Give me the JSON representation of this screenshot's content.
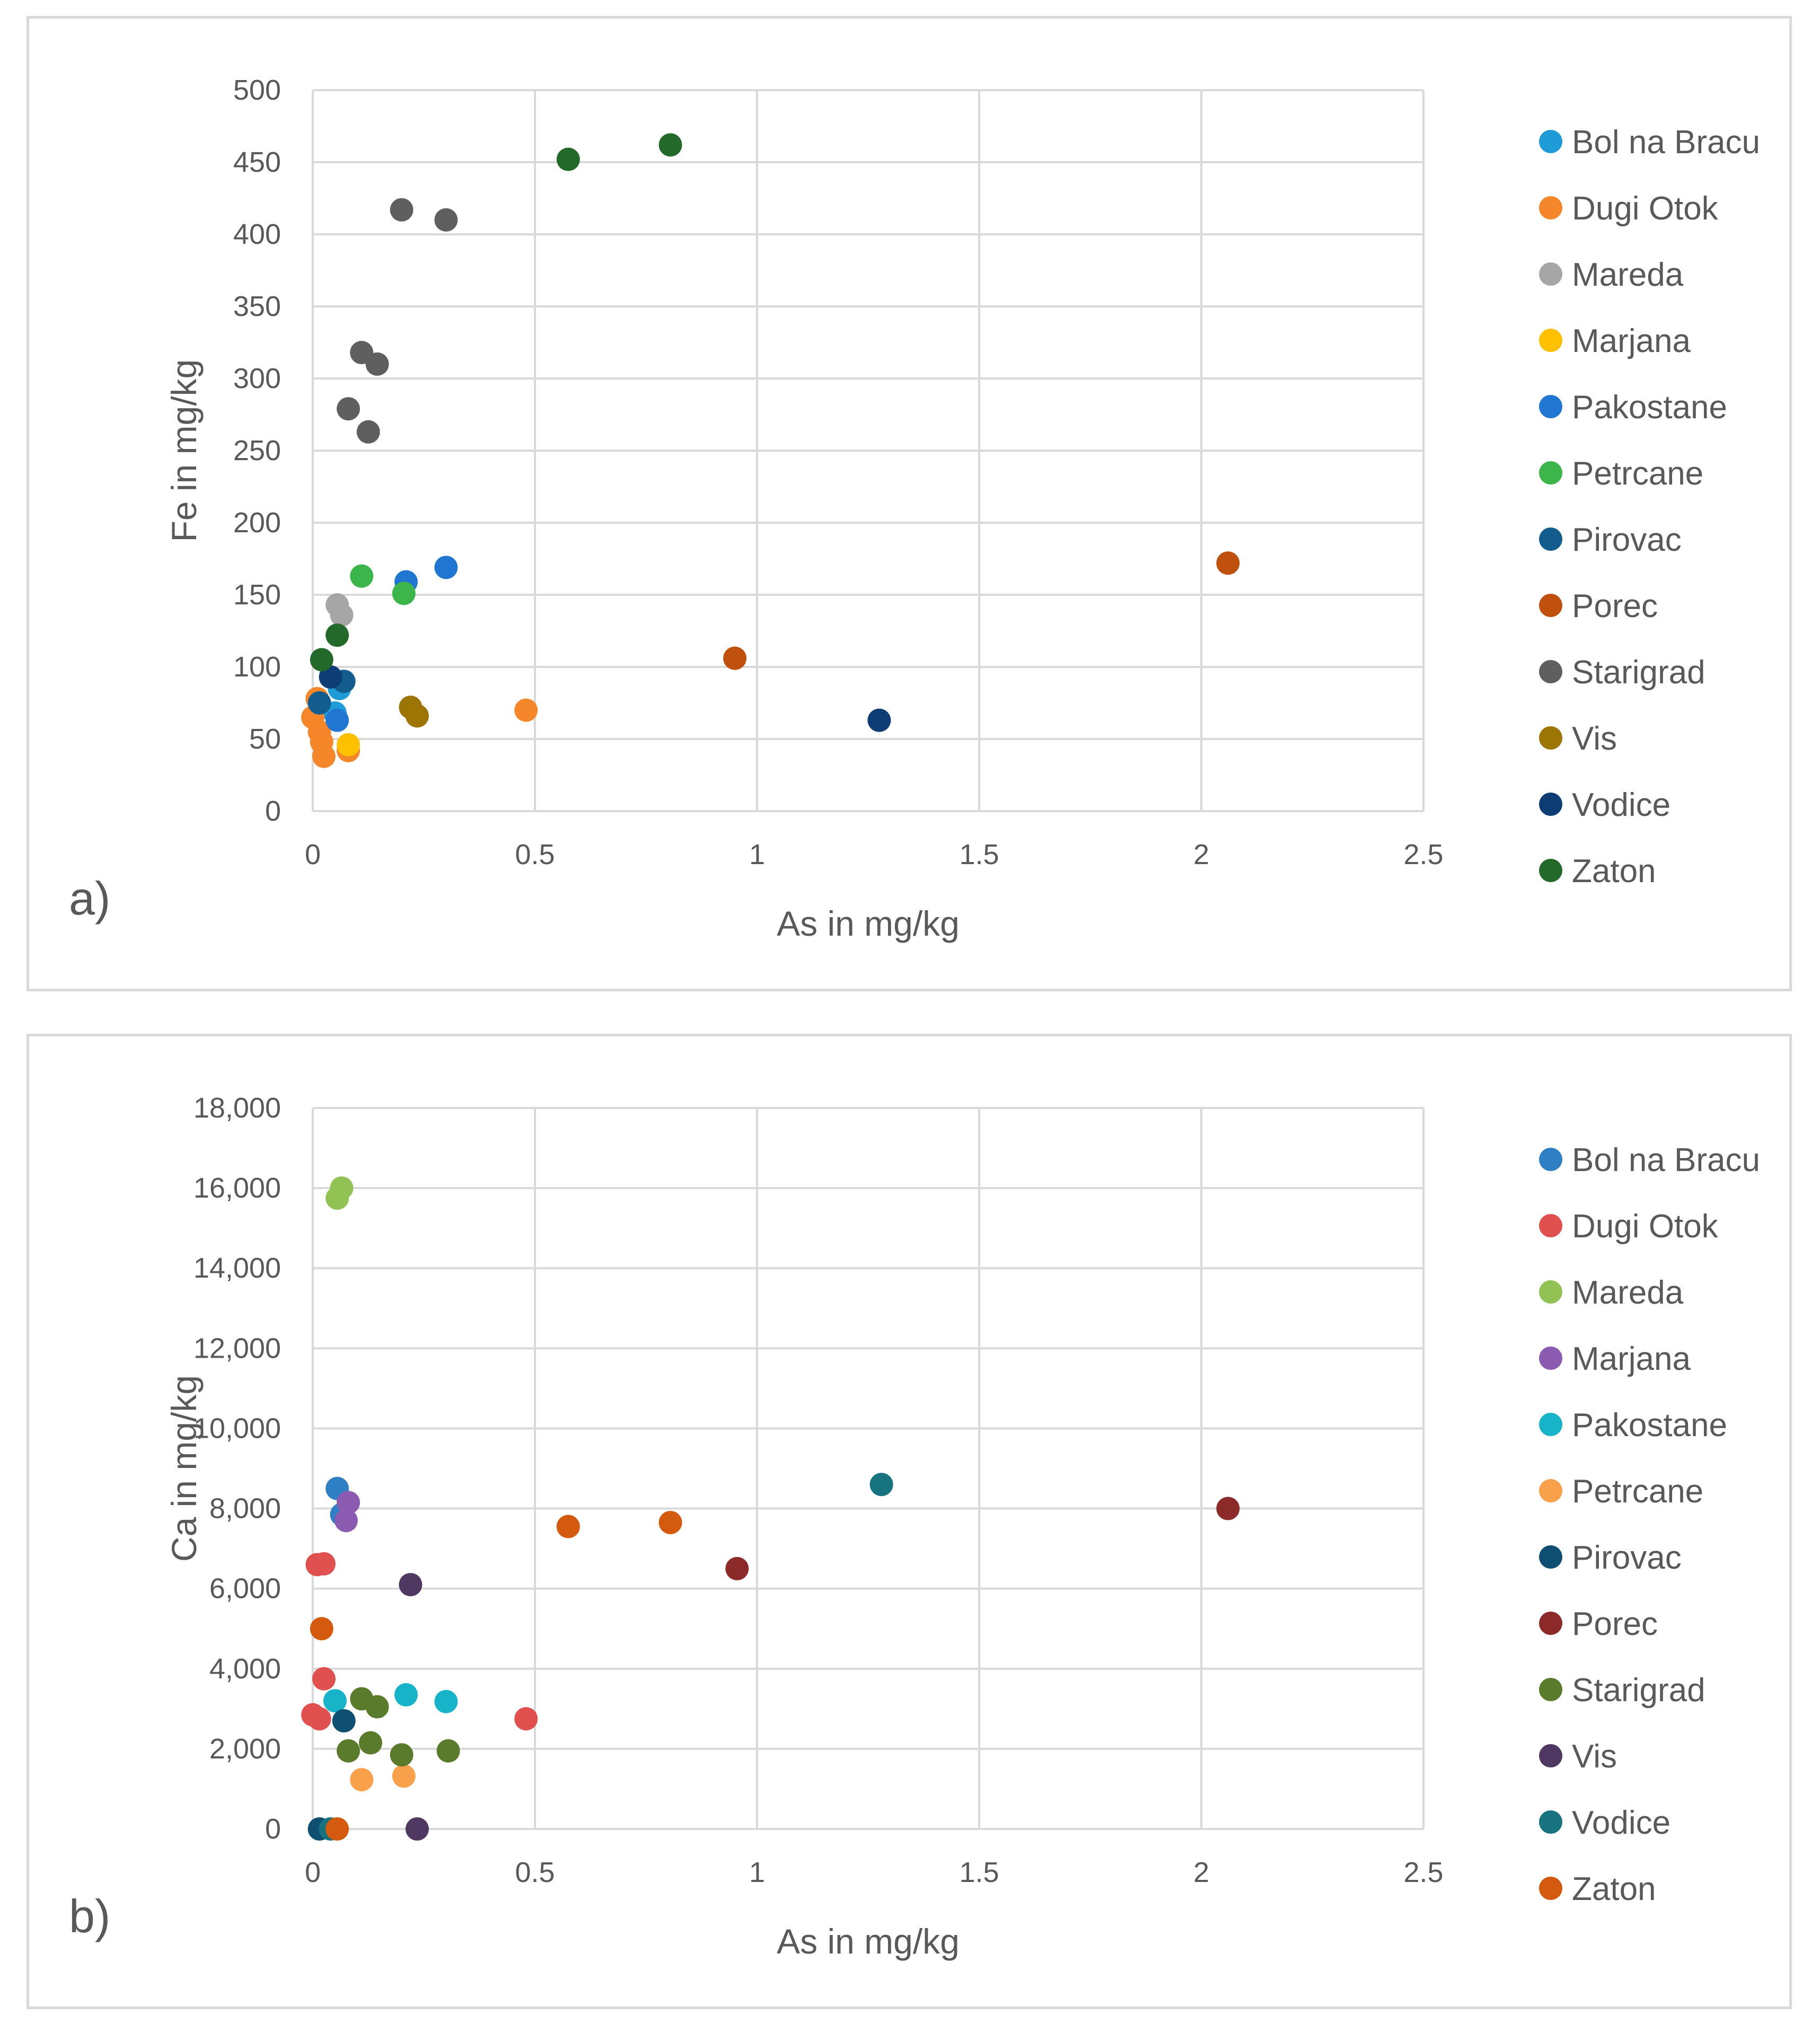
{
  "chart_data": [
    {
      "type": "scatter",
      "panel_label": "a)",
      "xlabel": "As in mg/kg",
      "ylabel": "Fe in mg/kg",
      "xlim": [
        0,
        2.5
      ],
      "ylim": [
        0,
        500
      ],
      "x_ticks": [
        0,
        0.5,
        1,
        1.5,
        2,
        2.5
      ],
      "x_tick_labels": [
        "0",
        "0.5",
        "1",
        "1.5",
        "2",
        "2.5"
      ],
      "y_ticks": [
        0,
        50,
        100,
        150,
        200,
        250,
        300,
        350,
        400,
        450,
        500
      ],
      "y_tick_labels": [
        "0",
        "50",
        "100",
        "150",
        "200",
        "250",
        "300",
        "350",
        "400",
        "450",
        "500"
      ],
      "grid": true,
      "legend_position": "right",
      "series": [
        {
          "name": "Bol na Bracu",
          "color": "#1f9bd7",
          "points": [
            [
              0.05,
              68
            ],
            [
              0.06,
              85
            ]
          ]
        },
        {
          "name": "Dugi Otok",
          "color": "#f5862a",
          "points": [
            [
              0.0,
              65
            ],
            [
              0.01,
              78
            ],
            [
              0.015,
              55
            ],
            [
              0.02,
              48
            ],
            [
              0.025,
              38
            ],
            [
              0.08,
              42
            ],
            [
              0.48,
              70
            ]
          ]
        },
        {
          "name": "Mareda",
          "color": "#a6a6a6",
          "points": [
            [
              0.055,
              143
            ],
            [
              0.065,
              136
            ]
          ]
        },
        {
          "name": "Marjana",
          "color": "#ffc000",
          "points": [
            [
              0.08,
              46
            ]
          ]
        },
        {
          "name": "Pakostane",
          "color": "#2176d2",
          "points": [
            [
              0.055,
              63
            ],
            [
              0.21,
              159
            ],
            [
              0.3,
              169
            ]
          ]
        },
        {
          "name": "Petrcane",
          "color": "#3cb54a",
          "points": [
            [
              0.11,
              163
            ],
            [
              0.205,
              151
            ]
          ]
        },
        {
          "name": "Pirovac",
          "color": "#125d8e",
          "points": [
            [
              0.015,
              75
            ],
            [
              0.07,
              90
            ]
          ]
        },
        {
          "name": "Porec",
          "color": "#c0500e",
          "points": [
            [
              0.95,
              106
            ],
            [
              2.06,
              172
            ]
          ]
        },
        {
          "name": "Starigrad",
          "color": "#5f5f5f",
          "points": [
            [
              0.08,
              279
            ],
            [
              0.11,
              318
            ],
            [
              0.125,
              263
            ],
            [
              0.145,
              310
            ],
            [
              0.2,
              417
            ],
            [
              0.3,
              410
            ]
          ]
        },
        {
          "name": "Vis",
          "color": "#9c7505",
          "points": [
            [
              0.22,
              72
            ],
            [
              0.235,
              66
            ]
          ]
        },
        {
          "name": "Vodice",
          "color": "#0e3c74",
          "points": [
            [
              0.04,
              93
            ],
            [
              1.275,
              63
            ]
          ]
        },
        {
          "name": "Zaton",
          "color": "#23692a",
          "points": [
            [
              0.02,
              105
            ],
            [
              0.055,
              122
            ],
            [
              0.575,
              452
            ],
            [
              0.805,
              462
            ]
          ]
        }
      ]
    },
    {
      "type": "scatter",
      "panel_label": "b)",
      "xlabel": "As in mg/kg",
      "ylabel": "Ca in mg/kg",
      "xlim": [
        0,
        2.5
      ],
      "ylim": [
        0,
        18000
      ],
      "x_ticks": [
        0,
        0.5,
        1,
        1.5,
        2,
        2.5
      ],
      "x_tick_labels": [
        "0",
        "0.5",
        "1",
        "1.5",
        "2",
        "2.5"
      ],
      "y_ticks": [
        0,
        2000,
        4000,
        6000,
        8000,
        10000,
        12000,
        14000,
        16000,
        18000
      ],
      "y_tick_labels": [
        "0",
        "2,000",
        "4,000",
        "6,000",
        "8,000",
        "10,000",
        "12,000",
        "14,000",
        "16,000",
        "18,000"
      ],
      "grid": true,
      "legend_position": "right",
      "series": [
        {
          "name": "Bol na Bracu",
          "color": "#2e7fc4",
          "points": [
            [
              0.055,
              8500
            ],
            [
              0.065,
              7850
            ]
          ]
        },
        {
          "name": "Dugi Otok",
          "color": "#e0504f",
          "points": [
            [
              0.0,
              2850
            ],
            [
              0.01,
              6600
            ],
            [
              0.015,
              2750
            ],
            [
              0.025,
              6620
            ],
            [
              0.025,
              3750
            ],
            [
              0.48,
              2750
            ]
          ]
        },
        {
          "name": "Mareda",
          "color": "#92c254",
          "points": [
            [
              0.055,
              15750
            ],
            [
              0.065,
              16000
            ]
          ]
        },
        {
          "name": "Marjana",
          "color": "#8b5bb1",
          "points": [
            [
              0.075,
              7700
            ],
            [
              0.08,
              8150
            ]
          ]
        },
        {
          "name": "Pakostane",
          "color": "#17b3c9",
          "points": [
            [
              0.05,
              3200
            ],
            [
              0.21,
              3350
            ],
            [
              0.3,
              3180
            ]
          ]
        },
        {
          "name": "Petrcane",
          "color": "#f9a04a",
          "points": [
            [
              0.11,
              1230
            ],
            [
              0.205,
              1320
            ]
          ]
        },
        {
          "name": "Pirovac",
          "color": "#0f4f72",
          "points": [
            [
              0.015,
              0
            ],
            [
              0.07,
              2700
            ]
          ]
        },
        {
          "name": "Porec",
          "color": "#8c2a2a",
          "points": [
            [
              0.955,
              6500
            ],
            [
              2.06,
              8000
            ]
          ]
        },
        {
          "name": "Starigrad",
          "color": "#5a7b2b",
          "points": [
            [
              0.08,
              1950
            ],
            [
              0.11,
              3250
            ],
            [
              0.13,
              2150
            ],
            [
              0.145,
              3050
            ],
            [
              0.2,
              1850
            ],
            [
              0.305,
              1950
            ]
          ]
        },
        {
          "name": "Vis",
          "color": "#4f3862",
          "points": [
            [
              0.22,
              6100
            ],
            [
              0.235,
              0
            ]
          ]
        },
        {
          "name": "Vodice",
          "color": "#16737f",
          "points": [
            [
              0.04,
              0
            ],
            [
              1.28,
              8600
            ]
          ]
        },
        {
          "name": "Zaton",
          "color": "#d35a0f",
          "points": [
            [
              0.02,
              5000
            ],
            [
              0.055,
              0
            ],
            [
              0.575,
              7550
            ],
            [
              0.805,
              7650
            ]
          ]
        }
      ]
    }
  ]
}
